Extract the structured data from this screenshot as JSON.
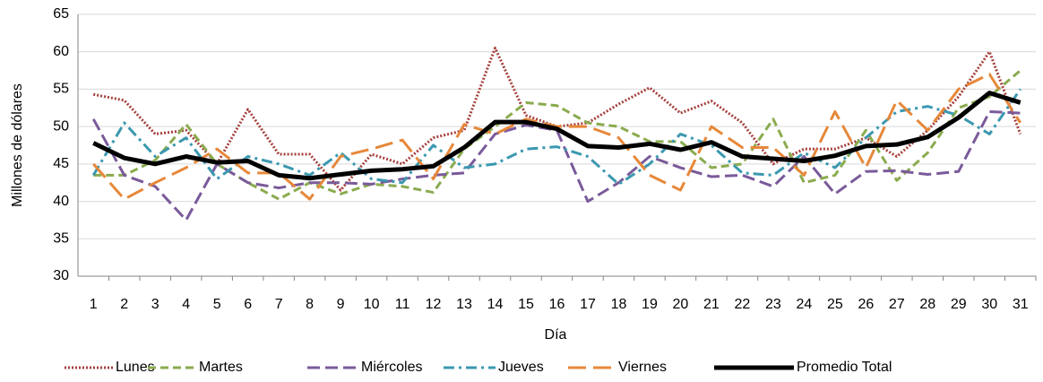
{
  "chart_data": {
    "type": "line",
    "x_label": "Día",
    "y_label": "Millones de dólares",
    "categories": [
      "1",
      "2",
      "3",
      "4",
      "5",
      "6",
      "7",
      "8",
      "9",
      "10",
      "11",
      "12",
      "13",
      "14",
      "15",
      "16",
      "17",
      "18",
      "19",
      "20",
      "21",
      "22",
      "23",
      "24",
      "25",
      "26",
      "27",
      "28",
      "29",
      "30",
      "31"
    ],
    "ylim": [
      30,
      65
    ],
    "yticks": [
      30,
      35,
      40,
      45,
      50,
      55,
      60,
      65
    ],
    "grid": true,
    "legend": "bottom",
    "series": [
      {
        "name": "Lunes",
        "color": "#a5403c",
        "dash": "dotted",
        "values": [
          54.3,
          53.5,
          49,
          49.5,
          45,
          52.3,
          46.3,
          46.3,
          41.5,
          46.3,
          45,
          48.5,
          49.5,
          60.5,
          51.5,
          50,
          50.5,
          53,
          55.2,
          51.8,
          53.4,
          50.5,
          45,
          47,
          47,
          48.5,
          46,
          49.5,
          54,
          60,
          49
        ]
      },
      {
        "name": "Martes",
        "color": "#8aab4e",
        "dash": "dashed",
        "values": [
          43.5,
          43.5,
          45.5,
          50.3,
          45,
          42.5,
          40.3,
          42.5,
          41,
          42.3,
          42,
          41.2,
          47,
          50,
          53.2,
          52.8,
          50.5,
          50,
          48,
          48,
          44.5,
          45,
          51,
          42.5,
          43.5,
          49.5,
          42.8,
          46.5,
          52.5,
          54,
          57.5
        ]
      },
      {
        "name": "Miércoles",
        "color": "#7a5a9a",
        "dash": "dashed-long",
        "values": [
          51,
          43.5,
          42,
          37.5,
          45,
          42.5,
          41.8,
          42.5,
          42.5,
          42.3,
          43,
          43.5,
          43.8,
          49,
          50.2,
          49.5,
          40,
          42.5,
          46,
          44.5,
          43.3,
          43.5,
          42,
          46,
          41,
          44,
          44.1,
          43.6,
          44,
          52,
          51.8
        ]
      },
      {
        "name": "Jueves",
        "color": "#3b98b0",
        "dash": "dashdot",
        "values": [
          43.5,
          50.5,
          46,
          48.5,
          43,
          46,
          45,
          43.5,
          46.5,
          43,
          42.5,
          47.5,
          44.5,
          45,
          47,
          47.3,
          46,
          42.3,
          45,
          49,
          47.5,
          43.8,
          43.5,
          46.5,
          44.5,
          48.5,
          52,
          52.7,
          51.5,
          49,
          55
        ]
      },
      {
        "name": "Viernes",
        "color": "#e6883a",
        "dash": "longdash",
        "values": [
          45,
          40.3,
          42.5,
          44.5,
          47,
          43.8,
          43.8,
          40.3,
          46,
          47,
          48.2,
          43,
          50.3,
          49,
          51,
          50,
          50,
          48.5,
          43.5,
          41.5,
          50,
          47.2,
          47.2,
          43.5,
          52,
          44.5,
          53.5,
          49.5,
          55,
          57,
          50.5
        ]
      },
      {
        "name": "Promedio Total",
        "color": "#000000",
        "dash": "solid",
        "values": [
          47.8,
          45.8,
          45,
          46,
          45.2,
          45.4,
          43.5,
          43.1,
          43.6,
          44.1,
          44.3,
          44.7,
          47.2,
          50.6,
          50.6,
          49.7,
          47.4,
          47.2,
          47.7,
          46.9,
          47.9,
          46,
          45.7,
          45.4,
          46.1,
          47.4,
          47.6,
          48.6,
          51.2,
          54.5,
          53.2
        ]
      }
    ]
  }
}
